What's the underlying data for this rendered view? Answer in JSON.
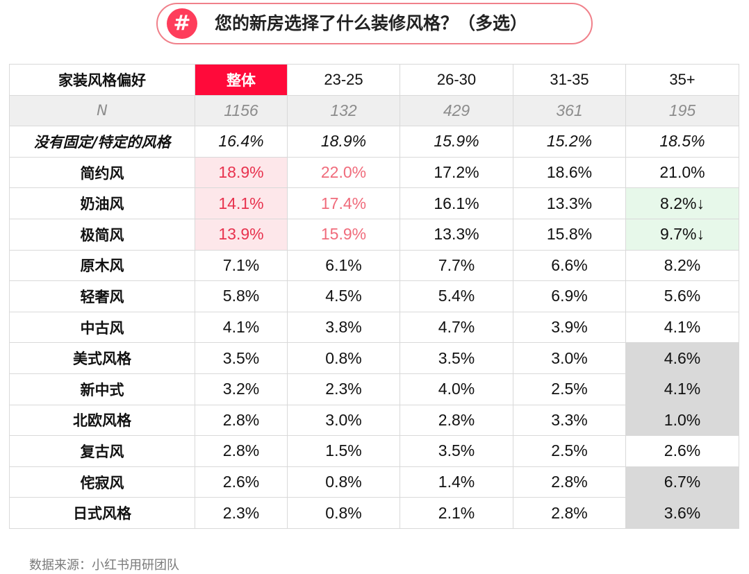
{
  "title": {
    "badge": "#",
    "text": "您的新房选择了什么装修风格？（多选）"
  },
  "colors": {
    "accent": "#fe3d5b",
    "total_header": "#ff0a3a",
    "highlight_pink": "#fde7ea",
    "highlight_green": "#e7f8ea",
    "highlight_gray": "#d9d9d9"
  },
  "chart_data": {
    "type": "table",
    "columns": [
      "家装风格偏好",
      "整体",
      "23-25",
      "26-30",
      "31-35",
      "35+"
    ],
    "n_row": [
      "N",
      "1156",
      "132",
      "429",
      "361",
      "195"
    ],
    "rows": [
      {
        "label": "没有固定/特定的风格",
        "values": [
          "16.4%",
          "18.9%",
          "15.9%",
          "15.2%",
          "18.5%"
        ]
      },
      {
        "label": "简约风",
        "values": [
          "18.9%",
          "22.0%",
          "17.2%",
          "18.6%",
          "21.0%"
        ]
      },
      {
        "label": "奶油风",
        "values": [
          "14.1%",
          "17.4%",
          "16.1%",
          "13.3%",
          "8.2%↓"
        ]
      },
      {
        "label": "极简风",
        "values": [
          "13.9%",
          "15.9%",
          "13.3%",
          "15.8%",
          "9.7%↓"
        ]
      },
      {
        "label": "原木风",
        "values": [
          "7.1%",
          "6.1%",
          "7.7%",
          "6.6%",
          "8.2%"
        ]
      },
      {
        "label": "轻奢风",
        "values": [
          "5.8%",
          "4.5%",
          "5.4%",
          "6.9%",
          "5.6%"
        ]
      },
      {
        "label": "中古风",
        "values": [
          "4.1%",
          "3.8%",
          "4.7%",
          "3.9%",
          "4.1%"
        ]
      },
      {
        "label": "美式风格",
        "values": [
          "3.5%",
          "0.8%",
          "3.5%",
          "3.0%",
          "4.6%"
        ]
      },
      {
        "label": "新中式",
        "values": [
          "3.2%",
          "2.3%",
          "4.0%",
          "2.5%",
          "4.1%"
        ]
      },
      {
        "label": "北欧风格",
        "values": [
          "2.8%",
          "3.0%",
          "2.8%",
          "3.3%",
          "1.0%"
        ]
      },
      {
        "label": "复古风",
        "values": [
          "2.8%",
          "1.5%",
          "3.5%",
          "2.5%",
          "2.6%"
        ]
      },
      {
        "label": "侘寂风",
        "values": [
          "2.6%",
          "0.8%",
          "1.4%",
          "2.8%",
          "6.7%"
        ]
      },
      {
        "label": "日式风格",
        "values": [
          "2.3%",
          "0.8%",
          "2.1%",
          "2.8%",
          "3.6%"
        ]
      }
    ]
  },
  "source": "数据来源：小红书用研团队"
}
